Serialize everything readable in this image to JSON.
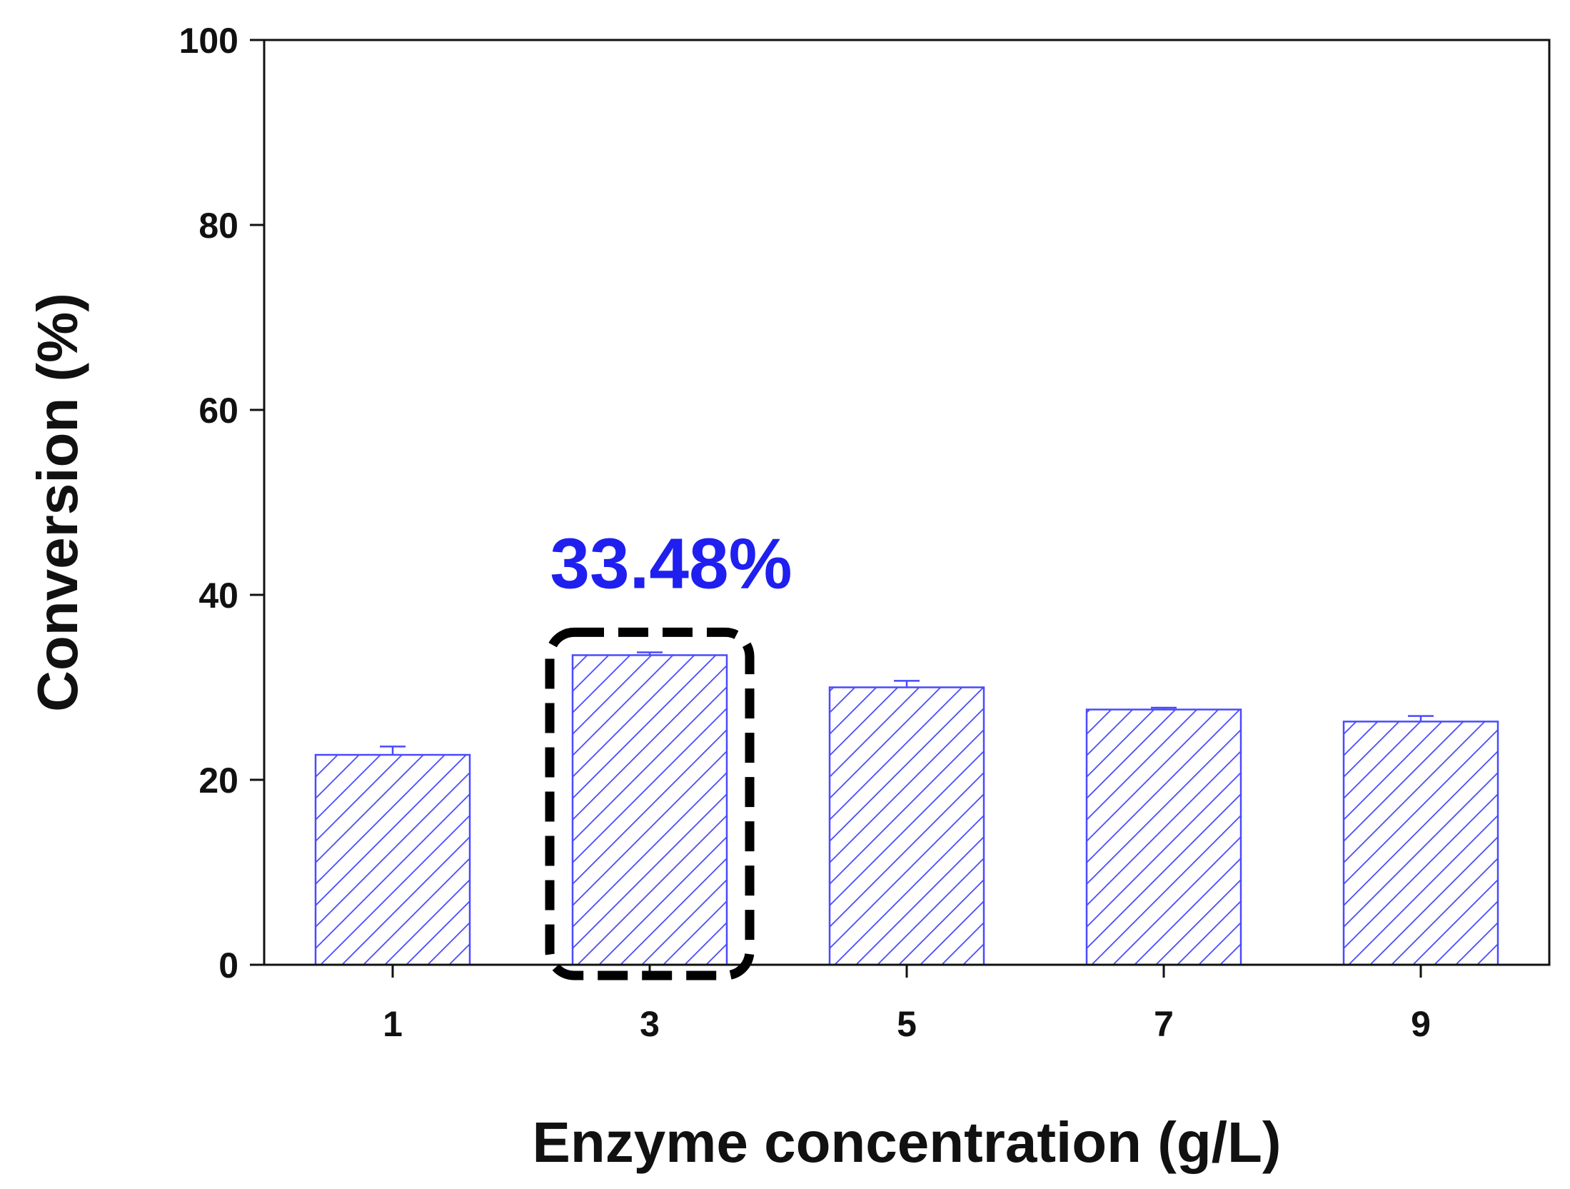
{
  "chart_data": {
    "type": "bar",
    "xlabel": "Enzyme concentration (g/L)",
    "ylabel": "Conversion (%)",
    "categories": [
      "1",
      "3",
      "5",
      "7",
      "9"
    ],
    "values": [
      22.7,
      33.48,
      30.0,
      27.6,
      26.3
    ],
    "errors": [
      0.9,
      0.3,
      0.7,
      0.2,
      0.6
    ],
    "ylim": [
      0,
      100
    ],
    "yticks": [
      "0",
      "20",
      "40",
      "60",
      "80",
      "100"
    ],
    "grid": false,
    "highlight_index": 1,
    "annotation": "33.48%",
    "colors": {
      "bar": "#4a4aff",
      "annotation": "#1f1ff0",
      "axis": "#111111",
      "highlight_box": "#000000"
    }
  }
}
